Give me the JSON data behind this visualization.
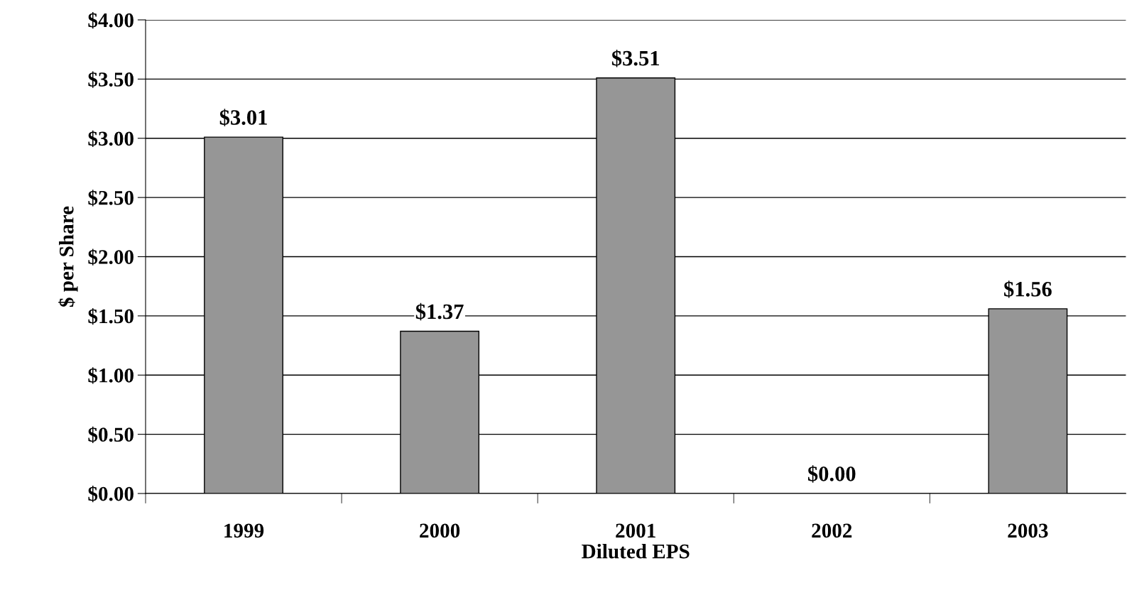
{
  "chart_data": {
    "type": "bar",
    "xlabel": "Diluted EPS",
    "ylabel": "$ per Share",
    "categories": [
      "1999",
      "2000",
      "2001",
      "2002",
      "2003"
    ],
    "values": [
      3.01,
      1.37,
      3.51,
      0.0,
      1.56
    ],
    "value_labels": [
      "$3.01",
      "$1.37",
      "$3.51",
      "$0.00",
      "$1.56"
    ],
    "color": "#969696",
    "ylim": [
      0,
      4
    ],
    "yticks": [
      {
        "value": 0,
        "label": "$0.00"
      },
      {
        "value": 0.5,
        "label": "$0.50"
      },
      {
        "value": 1,
        "label": "$1.00"
      },
      {
        "value": 1.5,
        "label": "$1.50"
      },
      {
        "value": 2,
        "label": "$2.00"
      },
      {
        "value": 2.5,
        "label": "$2.50"
      },
      {
        "value": 3,
        "label": "$3.00"
      },
      {
        "value": 3.5,
        "label": "$3.50"
      },
      {
        "value": 4,
        "label": "$4.00"
      }
    ],
    "grid": "y",
    "legend": false
  }
}
